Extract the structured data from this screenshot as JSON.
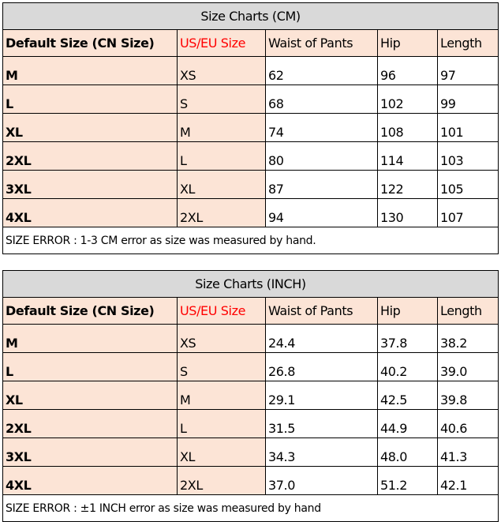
{
  "colors": {
    "title_bg": "#d9d9d9",
    "highlight_bg": "#fce4d6",
    "us_eu_header": "#ff0000"
  },
  "headers": [
    "Default Size (CN Size)",
    "US/EU Size",
    "Waist of Pants",
    "Hip",
    "Length"
  ],
  "tables": [
    {
      "title": "Size Charts (CM)",
      "rows": [
        [
          "M",
          "XS",
          "62",
          "96",
          "97"
        ],
        [
          "L",
          "S",
          "68",
          "102",
          "99"
        ],
        [
          "XL",
          "M",
          "74",
          "108",
          "101"
        ],
        [
          "2XL",
          "L",
          "80",
          "114",
          "103"
        ],
        [
          "3XL",
          "XL",
          "87",
          "122",
          "105"
        ],
        [
          "4XL",
          "2XL",
          "94",
          "130",
          "107"
        ]
      ],
      "footer": "SIZE ERROR : 1-3 CM error as size was measured by hand."
    },
    {
      "title": "Size Charts (INCH)",
      "rows": [
        [
          "M",
          "XS",
          "24.4",
          "37.8",
          "38.2"
        ],
        [
          "L",
          "S",
          "26.8",
          "40.2",
          "39.0"
        ],
        [
          "XL",
          "M",
          "29.1",
          "42.5",
          "39.8"
        ],
        [
          "2XL",
          "L",
          "31.5",
          "44.9",
          "40.6"
        ],
        [
          "3XL",
          "XL",
          "34.3",
          "48.0",
          "41.3"
        ],
        [
          "4XL",
          "2XL",
          "37.0",
          "51.2",
          "42.1"
        ]
      ],
      "footer": "SIZE ERROR : ±1 INCH error as size was measured by hand"
    }
  ]
}
